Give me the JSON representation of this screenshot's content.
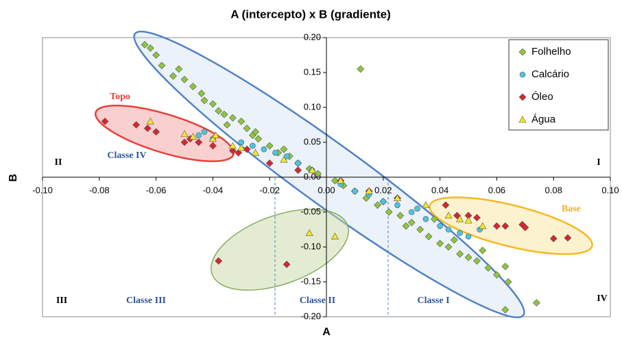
{
  "chart_data": {
    "type": "scatter",
    "title": "A (intercepto) x  B (gradiente)",
    "x_label": "A",
    "y_label": "B",
    "xlim": [
      -0.1,
      0.1
    ],
    "ylim": [
      -0.2,
      0.2
    ],
    "xticks": [
      {
        "value": -0.1,
        "label": "-0.10"
      },
      {
        "value": -0.08,
        "label": "-0.08"
      },
      {
        "value": -0.06,
        "label": "-0.06"
      },
      {
        "value": -0.04,
        "label": "-0.04"
      },
      {
        "value": -0.02,
        "label": "-0.02"
      },
      {
        "value": 0,
        "label": "0.00"
      },
      {
        "value": 0.02,
        "label": "0.02"
      },
      {
        "value": 0.04,
        "label": "0.04"
      },
      {
        "value": 0.06,
        "label": "0.06"
      },
      {
        "value": 0.08,
        "label": "0.08"
      },
      {
        "value": 0.1,
        "label": "0.10"
      }
    ],
    "yticks": [
      {
        "value": 0.2,
        "label": "0.20"
      },
      {
        "value": 0.15,
        "label": "0.15"
      },
      {
        "value": 0.1,
        "label": "0.10"
      },
      {
        "value": 0.05,
        "label": "0.05"
      },
      {
        "value": 0,
        "label": "0.00"
      },
      {
        "value": -0.05,
        "label": "-0.05"
      },
      {
        "value": -0.1,
        "label": "-0.10"
      },
      {
        "value": -0.15,
        "label": "-0.15"
      },
      {
        "value": -0.2,
        "label": "-0.20"
      }
    ],
    "legend_position": "upper right",
    "series": [
      {
        "name": "Folhelho",
        "color": "#8cc63f",
        "marker": "diamond",
        "x": [
          -0.064,
          -0.062,
          -0.06,
          -0.058,
          -0.052,
          -0.054,
          -0.05,
          -0.047,
          -0.044,
          -0.043,
          -0.04,
          -0.038,
          -0.036,
          -0.033,
          -0.03,
          -0.028,
          -0.026,
          -0.024,
          -0.02,
          -0.017,
          -0.013,
          -0.01,
          -0.006,
          -0.003,
          0.012,
          0.003,
          0.006,
          0.01,
          0.014,
          0.018,
          0.022,
          0.026,
          0.03,
          0.033,
          0.036,
          0.04,
          0.043,
          0.047,
          0.05,
          0.053,
          0.057,
          0.06,
          0.063,
          0.064,
          0.063,
          0.074,
          -0.035,
          -0.025,
          -0.015,
          0.02,
          0.028,
          0.038,
          0.045,
          0.055
        ],
        "y": [
          0.19,
          0.185,
          0.175,
          0.16,
          0.155,
          0.145,
          0.14,
          0.13,
          0.12,
          0.11,
          0.105,
          0.095,
          0.09,
          0.085,
          0.08,
          0.07,
          0.06,
          0.055,
          0.045,
          0.035,
          0.03,
          0.02,
          0.012,
          0.005,
          0.155,
          -0.005,
          -0.012,
          -0.02,
          -0.03,
          -0.04,
          -0.05,
          -0.055,
          -0.065,
          -0.075,
          -0.085,
          -0.095,
          -0.1,
          -0.11,
          -0.115,
          -0.12,
          -0.13,
          -0.14,
          -0.128,
          -0.15,
          -0.19,
          -0.18,
          0.075,
          0.065,
          0.04,
          -0.035,
          -0.07,
          -0.06,
          -0.09,
          -0.105
        ]
      },
      {
        "name": "Calcário",
        "color": "#4dc3e0",
        "marker": "circle",
        "x": [
          -0.045,
          -0.043,
          -0.04,
          -0.03,
          -0.026,
          -0.022,
          -0.018,
          -0.014,
          -0.01,
          -0.005,
          0.005,
          0.01,
          0.015,
          0.02,
          0.025,
          0.03,
          0.035,
          0.04,
          0.043,
          0.047,
          0.05,
          0.054,
          0.032
        ],
        "y": [
          0.06,
          0.065,
          0.055,
          0.05,
          0.045,
          0.04,
          0.035,
          0.03,
          0.02,
          0.01,
          -0.01,
          -0.02,
          -0.025,
          -0.035,
          -0.04,
          -0.05,
          -0.06,
          -0.07,
          -0.075,
          -0.08,
          -0.085,
          -0.075,
          -0.045
        ]
      },
      {
        "name": "Óleo",
        "color": "#d7262e",
        "marker": "diamond",
        "x": [
          -0.078,
          -0.067,
          -0.063,
          -0.06,
          -0.05,
          -0.048,
          -0.045,
          -0.04,
          -0.033,
          -0.031,
          -0.028,
          -0.02,
          -0.01,
          0.005,
          0.015,
          0.042,
          0.046,
          0.05,
          0.053,
          0.06,
          0.063,
          0.069,
          0.07,
          0.08,
          0.085,
          -0.038,
          -0.014,
          0.025
        ],
        "y": [
          0.08,
          0.075,
          0.07,
          0.065,
          0.05,
          0.055,
          0.05,
          0.045,
          0.038,
          0.035,
          0.04,
          0.02,
          0.01,
          -0.005,
          -0.02,
          -0.04,
          -0.055,
          -0.055,
          -0.058,
          -0.07,
          -0.07,
          -0.068,
          -0.072,
          -0.088,
          -0.087,
          -0.12,
          -0.125,
          -0.03
        ]
      },
      {
        "name": "Água",
        "color": "#f5e52a",
        "marker": "triangle",
        "x": [
          -0.062,
          -0.05,
          -0.047,
          -0.04,
          -0.039,
          -0.033,
          -0.03,
          -0.025,
          -0.015,
          -0.005,
          0.005,
          0.015,
          0.025,
          0.035,
          0.043,
          0.047,
          0.05,
          0.055,
          -0.006,
          0.003
        ],
        "y": [
          0.08,
          0.062,
          0.058,
          0.055,
          0.06,
          0.045,
          0.042,
          0.035,
          0.025,
          0.01,
          -0.005,
          -0.02,
          -0.03,
          -0.04,
          -0.055,
          -0.06,
          -0.062,
          -0.07,
          -0.08,
          -0.085
        ]
      }
    ],
    "annotations": [
      {
        "text": "Topo",
        "color": "#e8403a"
      },
      {
        "text": "Classe IV",
        "color": "#2e5597"
      },
      {
        "text": "II",
        "color": "#000000"
      },
      {
        "text": "I",
        "color": "#000000"
      },
      {
        "text": "Base",
        "color": "#f2b01e"
      },
      {
        "text": "Classe III",
        "color": "#2e5597"
      },
      {
        "text": "Classe II",
        "color": "#2e5597"
      },
      {
        "text": "Classe I",
        "color": "#2e5597"
      },
      {
        "text": "III",
        "color": "#000000"
      },
      {
        "text": "IV",
        "color": "#000000"
      }
    ]
  }
}
